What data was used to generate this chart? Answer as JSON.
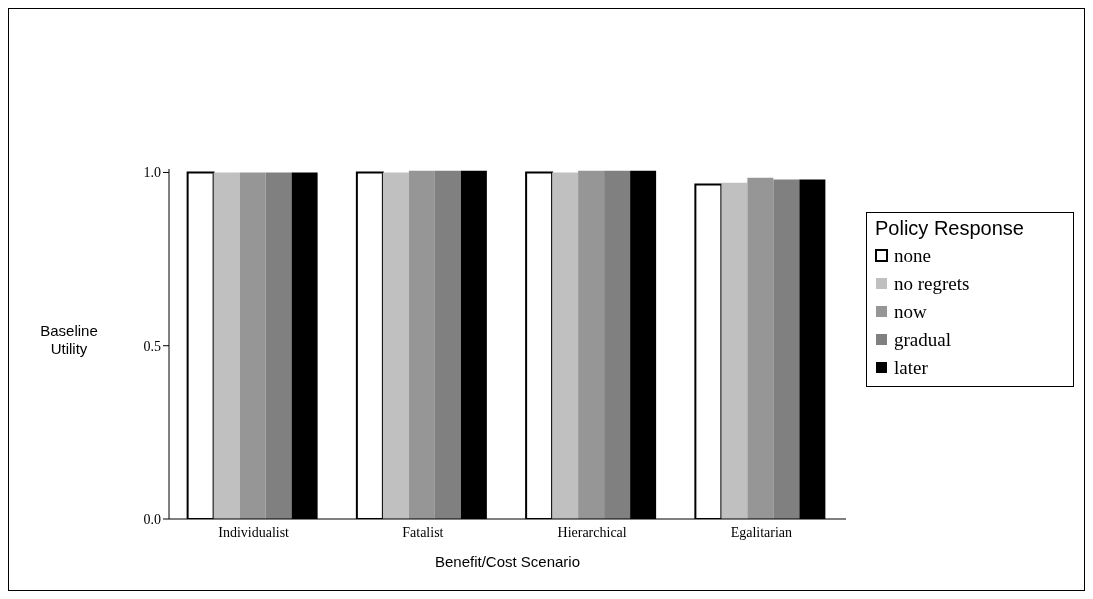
{
  "chart_data": {
    "type": "bar",
    "xlabel": "Benefit/Cost Scenario",
    "ylabel": "Baseline Utility",
    "legend_title": "Policy Response",
    "categories": [
      "Individualist",
      "Fatalist",
      "Hierarchical",
      "Egalitarian"
    ],
    "series": [
      {
        "name": "none",
        "color": "#ffffff",
        "values": [
          1.0,
          1.0,
          1.0,
          0.965
        ]
      },
      {
        "name": "no regrets",
        "color": "#c0c0c0",
        "values": [
          1.0,
          1.0,
          1.0,
          0.97
        ]
      },
      {
        "name": "now",
        "color": "#969696",
        "values": [
          1.0,
          1.005,
          1.005,
          0.985
        ]
      },
      {
        "name": "gradual",
        "color": "#808080",
        "values": [
          1.0,
          1.005,
          1.005,
          0.98
        ]
      },
      {
        "name": "later",
        "color": "#000000",
        "values": [
          1.0,
          1.005,
          1.005,
          0.98
        ]
      }
    ],
    "ylim": [
      0,
      1.01
    ],
    "yticks": [
      {
        "value": 0,
        "label": "0.0"
      },
      {
        "value": 0.5,
        "label": "0.5"
      },
      {
        "value": 1,
        "label": "1.0"
      }
    ],
    "grid": false,
    "legend": "right"
  }
}
